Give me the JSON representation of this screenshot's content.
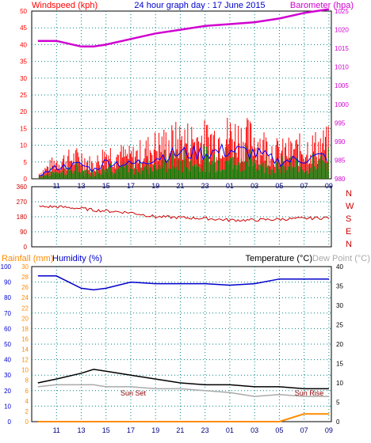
{
  "title": "24 hour graph day : 17 June 2015",
  "colors": {
    "wind": "#ff0000",
    "gust_blue": "#0000ff",
    "wind_green": "#008000",
    "baro": "#d000d0",
    "winddir": "#cc0000",
    "rain": "#ff8c00",
    "humidity": "#0000cc",
    "temperature": "#000000",
    "dewpoint": "#aaaaaa",
    "axis_teal": "#008080",
    "frame": "#000000",
    "sun_label": "#8b0000"
  },
  "x_ticks": [
    "11",
    "13",
    "15",
    "17",
    "19",
    "21",
    "23",
    "01",
    "03",
    "05",
    "07",
    "09"
  ],
  "top": {
    "left_label": "Windspeed (kph)",
    "right_label": "Barometer (hpa)",
    "left_ticks": [
      "0",
      "5",
      "10",
      "15",
      "20",
      "25",
      "30",
      "35",
      "40",
      "45",
      "50"
    ],
    "right_ticks": [
      "980",
      "985",
      "990",
      "995",
      "1000",
      "1005",
      "1010",
      "1015",
      "1020",
      "1025"
    ]
  },
  "middle": {
    "left_ticks": [
      "0",
      "90",
      "180",
      "270",
      "360"
    ],
    "compass": [
      "N",
      "W",
      "S",
      "E",
      "N"
    ]
  },
  "bottom": {
    "rain_label": "Rainfall (mm)",
    "humidity_label": "Humidity (%)",
    "temp_label": "Temperature (°C)",
    "dew_label": "Dew Point (°C)",
    "humidity_ticks": [
      "0",
      "10",
      "20",
      "30",
      "40",
      "50",
      "60",
      "70",
      "80",
      "90",
      "100"
    ],
    "rain_ticks": [
      "0",
      "2",
      "4",
      "6",
      "8",
      "10",
      "12",
      "14",
      "16",
      "18",
      "20",
      "22",
      "24",
      "26",
      "28",
      "30"
    ],
    "temp_ticks": [
      "0",
      "5",
      "10",
      "15",
      "20",
      "25",
      "30",
      "35",
      "40"
    ],
    "sun_set": "Sun Set",
    "sun_rise": "Sun Rise"
  },
  "chart_data": {
    "type": "line",
    "title": "24 hour graph day : 17 June 2015",
    "x_hours": [
      9.5,
      11,
      13,
      14,
      15,
      17,
      19,
      21,
      23,
      25,
      27,
      29,
      31,
      33
    ],
    "series": [
      {
        "name": "Barometer (hpa)",
        "values": [
          1017,
          1017,
          1015.5,
          1015.5,
          1016,
          1017.5,
          1019,
          1020,
          1021,
          1021.5,
          1022,
          1023,
          1024.5,
          1025.5
        ]
      },
      {
        "name": "Windspeed (kph)",
        "peak": [
          2,
          8,
          10,
          6,
          12,
          10,
          15,
          18,
          18,
          20,
          18,
          12,
          14,
          16
        ]
      },
      {
        "name": "Humidity (%)",
        "values": [
          94,
          94,
          86,
          85,
          86,
          90,
          89,
          89,
          89,
          88,
          89,
          92,
          92,
          92
        ]
      },
      {
        "name": "Temperature (°C)",
        "values": [
          10,
          11,
          12.5,
          13.5,
          13,
          12,
          11,
          10,
          9.5,
          9.5,
          9,
          9,
          8.5,
          8.5
        ]
      },
      {
        "name": "Dew Point (°C)",
        "values": [
          9,
          9.5,
          9.5,
          9.5,
          9,
          9,
          8.5,
          8.5,
          8,
          7.5,
          6.5,
          7,
          6.5,
          6.5
        ]
      },
      {
        "name": "Rainfall (mm)",
        "values": [
          0,
          0,
          0,
          0,
          0,
          0,
          0,
          0,
          0,
          0,
          0,
          0,
          1.5,
          1.5
        ]
      }
    ],
    "wind_direction_deg": [
      240,
      240,
      230,
      220,
      215,
      205,
      180,
      175,
      170,
      160,
      160,
      165,
      170,
      175
    ],
    "top_ylim": [
      0,
      50
    ],
    "baro_ylim": [
      980,
      1025
    ],
    "dir_ylim": [
      0,
      360
    ],
    "humidity_ylim": [
      0,
      100
    ],
    "rain_ylim": [
      0,
      30
    ],
    "temp_ylim": [
      0,
      40
    ],
    "grid": true
  }
}
